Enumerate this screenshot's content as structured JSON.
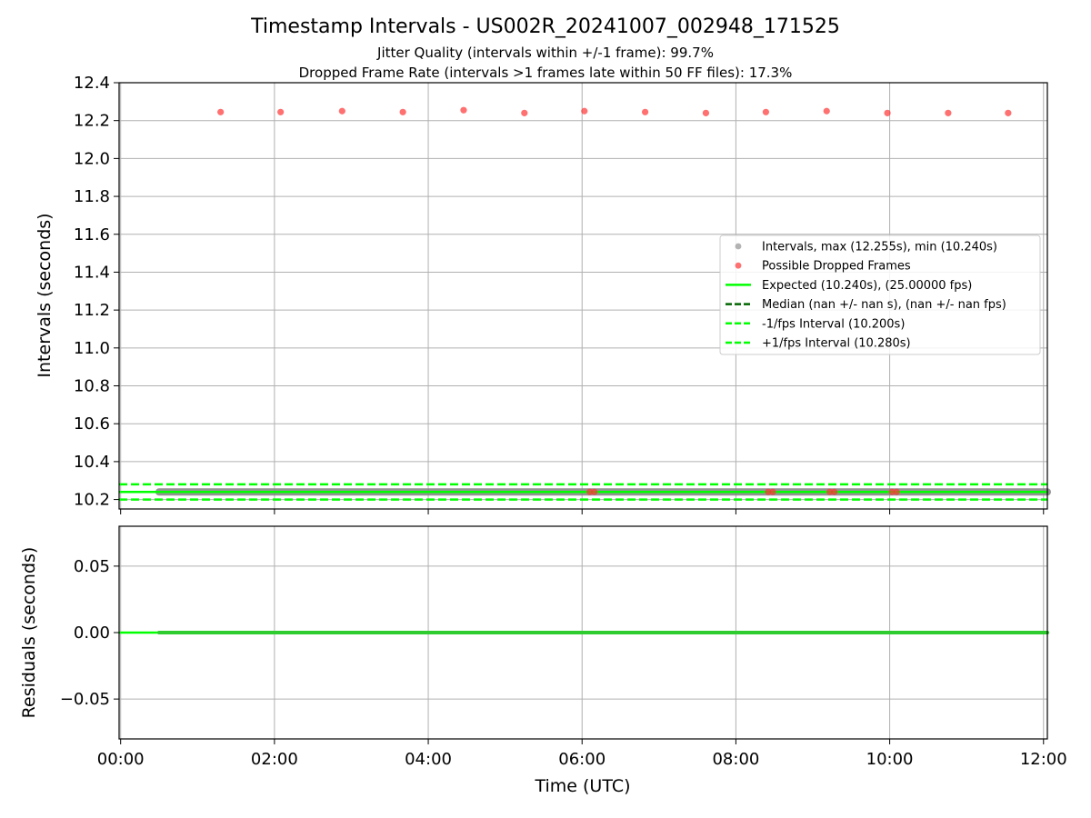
{
  "chart_data": {
    "type": "scatter",
    "title": "Timestamp Intervals - US002R_20241007_002948_171525",
    "subtitle_lines": [
      "Jitter Quality (intervals within +/-1 frame): 99.7%",
      "Dropped Frame Rate (intervals >1 frames late within 50 FF files): 17.3%"
    ],
    "x_ticks": [
      "00:00",
      "02:00",
      "04:00",
      "06:00",
      "08:00",
      "10:00",
      "12:00"
    ],
    "xlabel": "Time (UTC)",
    "top_panel": {
      "ylabel": "Intervals (seconds)",
      "ylim": [
        10.15,
        12.4
      ],
      "y_ticks": [
        "10.2",
        "10.4",
        "10.6",
        "10.8",
        "11.0",
        "11.2",
        "11.4",
        "11.6",
        "11.8",
        "12.0",
        "12.2",
        "12.4"
      ],
      "grid": true,
      "legend_position": "center-right",
      "series": [
        {
          "name": "Intervals, max (12.255s), min (10.240s)",
          "kind": "scatter-dense",
          "color": "#808080",
          "x_start_hours": 0.5,
          "x_end_hours": 12.1,
          "value": 10.24
        },
        {
          "name": "Possible Dropped Frames",
          "kind": "scatter",
          "color": "#ff3333",
          "points": [
            [
              1.3,
              12.245
            ],
            [
              2.08,
              12.245
            ],
            [
              2.88,
              12.25
            ],
            [
              3.67,
              12.245
            ],
            [
              4.46,
              12.255
            ],
            [
              5.25,
              12.24
            ],
            [
              6.03,
              12.25
            ],
            [
              6.82,
              12.245
            ],
            [
              7.61,
              12.24
            ],
            [
              8.39,
              12.245
            ],
            [
              9.18,
              12.25
            ],
            [
              9.97,
              12.24
            ],
            [
              10.76,
              12.24
            ],
            [
              11.54,
              12.24
            ],
            [
              6.1,
              10.24
            ],
            [
              6.16,
              10.24
            ],
            [
              8.42,
              10.24
            ],
            [
              8.48,
              10.24
            ],
            [
              9.22,
              10.24
            ],
            [
              9.28,
              10.24
            ],
            [
              10.03,
              10.24
            ],
            [
              10.09,
              10.24
            ]
          ]
        },
        {
          "name": "Expected (10.240s), (25.00000 fps)",
          "kind": "line",
          "style": "solid",
          "color": "#00ff00",
          "value": 10.24
        },
        {
          "name": "Median (nan +/- nan s), (nan +/- nan fps)",
          "kind": "line",
          "style": "dashed",
          "color": "#006400",
          "value": null
        },
        {
          "name": "-1/fps Interval (10.200s)",
          "kind": "line",
          "style": "dashed",
          "color": "#00ff00",
          "value": 10.2
        },
        {
          "name": "+1/fps Interval (10.280s)",
          "kind": "line",
          "style": "dashed",
          "color": "#00ff00",
          "value": 10.28
        }
      ]
    },
    "bottom_panel": {
      "ylabel": "Residuals (seconds)",
      "ylim": [
        -0.08,
        0.08
      ],
      "y_ticks": [
        "0.05",
        "0.00",
        "−0.05"
      ],
      "y_tick_values": [
        0.05,
        0.0,
        -0.05
      ],
      "grid": true,
      "series": [
        {
          "kind": "line",
          "color": "#00ff00",
          "value": 0.0
        },
        {
          "kind": "scatter-dense",
          "color": "#808080",
          "x_start_hours": 0.5,
          "x_end_hours": 12.1,
          "value": 0.0
        }
      ]
    },
    "x_range_hours": [
      -0.02,
      12.05
    ]
  }
}
